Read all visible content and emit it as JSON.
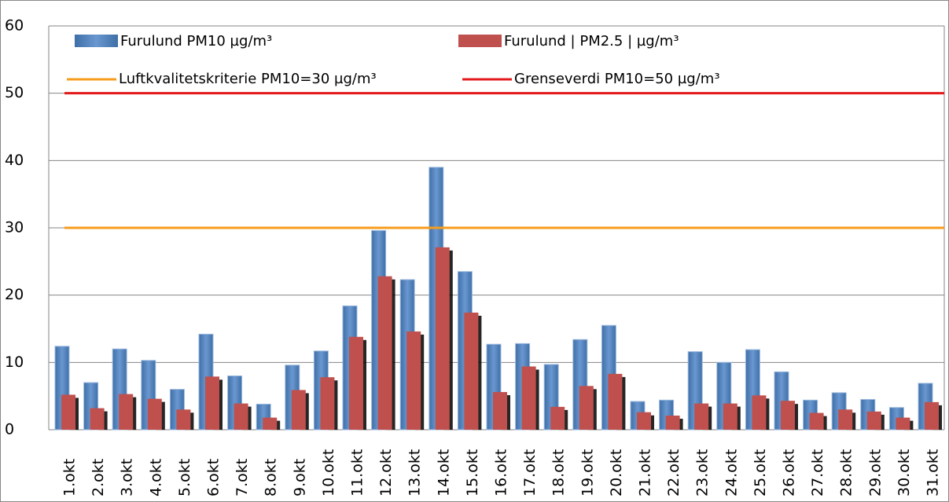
{
  "chart_data": {
    "type": "bar",
    "categories": [
      "1.okt",
      "2.okt",
      "3.okt",
      "4.okt",
      "5.okt",
      "6.okt",
      "7.okt",
      "8.okt",
      "9.okt",
      "10.okt",
      "11.okt",
      "12.okt",
      "13.okt",
      "14.okt",
      "15.okt",
      "16.okt",
      "17.okt",
      "18.okt",
      "19.okt",
      "20.okt",
      "21.okt",
      "22.okt",
      "23.okt",
      "24.okt",
      "25.okt",
      "26.okt",
      "27.okt",
      "28.okt",
      "29.okt",
      "30.okt",
      "31.okt"
    ],
    "series": [
      {
        "name": "Furulund  PM10  µg/m³",
        "color": "#4f81bd",
        "values": [
          12.4,
          7,
          12,
          10.3,
          6,
          14.2,
          8,
          3.8,
          9.6,
          11.7,
          18.4,
          29.6,
          22.3,
          39,
          23.5,
          12.7,
          12.8,
          9.7,
          13.4,
          15.5,
          4.2,
          4.4,
          11.6,
          10,
          11.9,
          8.6,
          4.4,
          5.5,
          4.5,
          3.3,
          6.9
        ]
      },
      {
        "name": "Furulund | PM2.5 | µg/m³",
        "color": "#c0504d",
        "values": [
          5.2,
          3.2,
          5.3,
          4.6,
          3,
          7.9,
          3.9,
          1.8,
          5.9,
          7.8,
          13.8,
          22.8,
          14.6,
          27.1,
          17.4,
          5.6,
          9.4,
          3.4,
          6.5,
          8.3,
          2.6,
          2.1,
          3.9,
          3.9,
          5.1,
          4.3,
          2.5,
          3,
          2.7,
          1.8,
          4.1
        ]
      }
    ],
    "reference_lines": [
      {
        "name": "Luftkvalitetskriterie PM10=30 µg/m³",
        "color": "#f79c1c",
        "value": 30
      },
      {
        "name": "Grenseverdi PM10=50 µg/m³",
        "color": "#e31a1c",
        "value": 50
      }
    ],
    "ylim": [
      0,
      60
    ],
    "yticks": [
      0,
      10,
      20,
      30,
      40,
      50,
      60
    ],
    "grid": true
  }
}
